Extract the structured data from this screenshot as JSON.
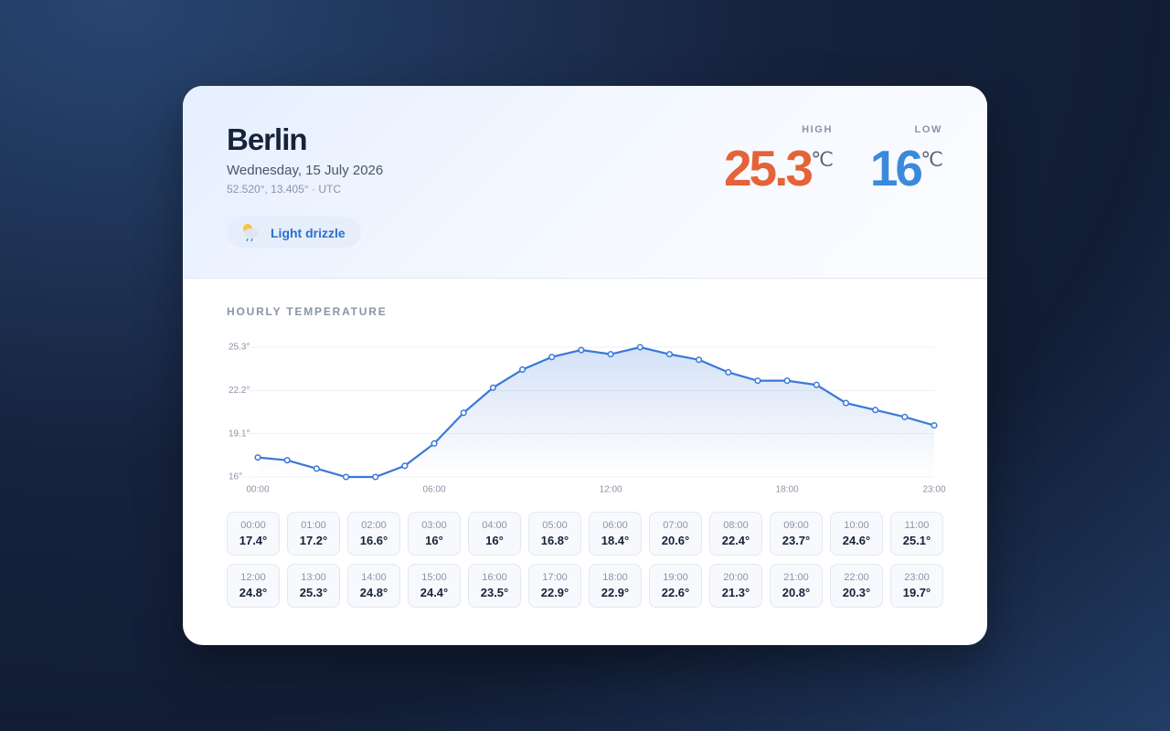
{
  "header": {
    "city": "Berlin",
    "date": "Wednesday, 15 July 2026",
    "coords": "52.520°, 13.405° · UTC",
    "condition": "Light drizzle",
    "high_label": "HIGH",
    "high": 25.3,
    "low_label": "LOW",
    "low": 16,
    "unit": "℃"
  },
  "chart_data": {
    "type": "line",
    "title": "HOURLY TEMPERATURE",
    "categories": [
      "00:00",
      "01:00",
      "02:00",
      "03:00",
      "04:00",
      "05:00",
      "06:00",
      "07:00",
      "08:00",
      "09:00",
      "10:00",
      "11:00",
      "12:00",
      "13:00",
      "14:00",
      "15:00",
      "16:00",
      "17:00",
      "18:00",
      "19:00",
      "20:00",
      "21:00",
      "22:00",
      "23:00"
    ],
    "values": [
      17.4,
      17.2,
      16.6,
      16,
      16,
      16.8,
      18.4,
      20.6,
      22.4,
      23.7,
      24.6,
      25.1,
      24.8,
      25.3,
      24.8,
      24.4,
      23.5,
      22.9,
      22.9,
      22.6,
      21.3,
      20.8,
      20.3,
      19.7
    ],
    "value_labels": [
      "17.4°",
      "17.2°",
      "16.6°",
      "16°",
      "16°",
      "16.8°",
      "18.4°",
      "20.6°",
      "22.4°",
      "23.7°",
      "24.6°",
      "25.1°",
      "24.8°",
      "25.3°",
      "24.8°",
      "24.4°",
      "23.5°",
      "22.9°",
      "22.9°",
      "22.6°",
      "21.3°",
      "20.8°",
      "20.3°",
      "19.7°"
    ],
    "color": "#3a78d8",
    "ylim": [
      16,
      25.3
    ],
    "yticks": [
      {
        "value": 16,
        "label": "16°"
      },
      {
        "value": 19.1,
        "label": "19.1°"
      },
      {
        "value": 22.2,
        "label": "22.2°"
      },
      {
        "value": 25.3,
        "label": "25.3°"
      }
    ],
    "grid": true
  }
}
